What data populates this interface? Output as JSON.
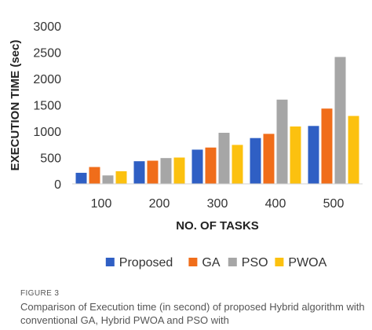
{
  "chart_data": {
    "type": "bar",
    "title": "",
    "xlabel": "NO. OF TASKS",
    "ylabel": "EXECUTION TIME (sec)",
    "categories": [
      "100",
      "200",
      "300",
      "400",
      "500"
    ],
    "series": [
      {
        "name": "Proposed",
        "color": "#2f5fc4",
        "values": [
          210,
          430,
          650,
          870,
          1100
        ]
      },
      {
        "name": "GA",
        "color": "#f06d1a",
        "values": [
          320,
          440,
          690,
          950,
          1430
        ]
      },
      {
        "name": "PSO",
        "color": "#a6a6a6",
        "values": [
          160,
          490,
          970,
          1600,
          2410
        ]
      },
      {
        "name": "PWOA",
        "color": "#fcc10f",
        "values": [
          240,
          500,
          740,
          1090,
          1290
        ]
      }
    ],
    "ylim": [
      0,
      3000
    ],
    "yticks": [
      "0",
      "500",
      "1000",
      "1500",
      "2000",
      "2500",
      "3000"
    ],
    "grid": false,
    "legend_position": "bottom"
  },
  "caption": {
    "label": "FIGURE 3",
    "text": "Comparison of Execution time (in second) of proposed Hybrid algorithm with conventional GA, Hybrid PWOA and PSO with"
  }
}
